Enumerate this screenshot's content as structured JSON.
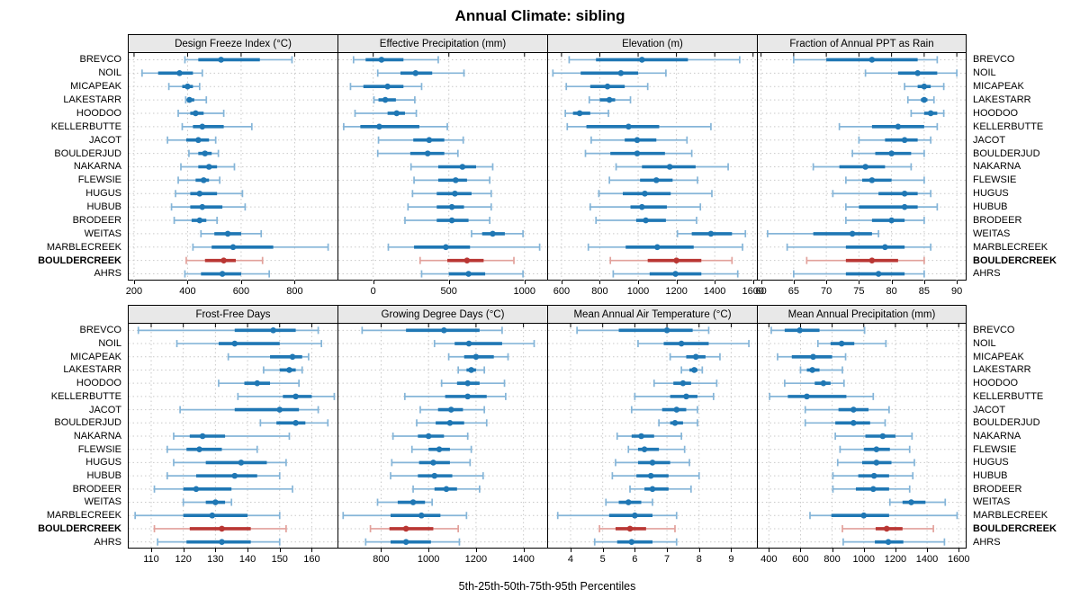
{
  "title": "Annual Climate: sibling",
  "caption": "5th-25th-50th-75th-95th Percentiles",
  "percentile_labels": [
    "5th",
    "25th",
    "50th",
    "75th",
    "95th"
  ],
  "sites": [
    "BREVCO",
    "NOIL",
    "MICAPEAK",
    "LAKESTARR",
    "HOODOO",
    "KELLERBUTTE",
    "JACOT",
    "BOULDERJUD",
    "NAKARNA",
    "FLEWSIE",
    "HUGUS",
    "HUBUB",
    "BRODEER",
    "WEITAS",
    "MARBLECREEK",
    "BOULDERCREEK",
    "AHRS"
  ],
  "highlight_site": "BOULDERCREEK",
  "colors": {
    "series": "#1f77b4",
    "series_light": "#85b5d8",
    "highlight": "#b93633",
    "highlight_light": "#e2a19b",
    "strip_bg": "#e8e8e8",
    "grid": "#c9c9c9",
    "border": "#000000"
  },
  "layout": {
    "rows": 2,
    "cols": 4,
    "grid": "dotted",
    "legend": "none"
  },
  "chart_data": [
    {
      "type": "dotplot",
      "title": "Design Freeze Index (°C)",
      "xlim": [
        180,
        960
      ],
      "ticks": [
        200,
        400,
        600,
        800
      ],
      "percentiles": [
        [
          390,
          440,
          525,
          670,
          790
        ],
        [
          230,
          290,
          370,
          420,
          455
        ],
        [
          330,
          380,
          400,
          420,
          445
        ],
        [
          393,
          400,
          407,
          425,
          470
        ],
        [
          365,
          410,
          430,
          460,
          535
        ],
        [
          380,
          420,
          455,
          535,
          640
        ],
        [
          325,
          395,
          440,
          480,
          505
        ],
        [
          405,
          440,
          465,
          490,
          515
        ],
        [
          375,
          440,
          480,
          510,
          575
        ],
        [
          365,
          430,
          460,
          480,
          520
        ],
        [
          355,
          410,
          445,
          510,
          605
        ],
        [
          340,
          410,
          455,
          530,
          615
        ],
        [
          350,
          415,
          445,
          470,
          510
        ],
        [
          450,
          500,
          550,
          600,
          675
        ],
        [
          420,
          490,
          570,
          720,
          925
        ],
        [
          395,
          465,
          535,
          580,
          680
        ],
        [
          390,
          450,
          530,
          600,
          705
        ]
      ]
    },
    {
      "type": "dotplot",
      "title": "Effective Precipitation (mm)",
      "xlim": [
        -230,
        1150
      ],
      "ticks": [
        0,
        500,
        1000
      ],
      "percentiles": [
        [
          -130,
          -50,
          55,
          200,
          430
        ],
        [
          30,
          180,
          280,
          390,
          600
        ],
        [
          -150,
          -65,
          95,
          200,
          320
        ],
        [
          5,
          35,
          80,
          150,
          275
        ],
        [
          -120,
          95,
          155,
          210,
          285
        ],
        [
          -195,
          -85,
          40,
          305,
          490
        ],
        [
          35,
          265,
          370,
          470,
          595
        ],
        [
          30,
          245,
          360,
          470,
          560
        ],
        [
          250,
          430,
          590,
          680,
          790
        ],
        [
          270,
          430,
          545,
          620,
          770
        ],
        [
          260,
          420,
          540,
          650,
          780
        ],
        [
          230,
          420,
          520,
          600,
          780
        ],
        [
          210,
          420,
          520,
          630,
          770
        ],
        [
          650,
          720,
          790,
          870,
          990
        ],
        [
          100,
          270,
          480,
          640,
          1100
        ],
        [
          310,
          490,
          620,
          730,
          930
        ],
        [
          320,
          500,
          630,
          740,
          990
        ]
      ]
    },
    {
      "type": "dotplot",
      "title": "Elevation (m)",
      "xlim": [
        530,
        1620
      ],
      "ticks": [
        600,
        800,
        1000,
        1200,
        1400,
        1600
      ],
      "percentiles": [
        [
          640,
          780,
          1020,
          1260,
          1530
        ],
        [
          555,
          700,
          910,
          1000,
          1145
        ],
        [
          625,
          750,
          840,
          930,
          1050
        ],
        [
          745,
          800,
          850,
          880,
          960
        ],
        [
          620,
          660,
          695,
          750,
          845
        ],
        [
          630,
          730,
          950,
          1110,
          1380
        ],
        [
          755,
          930,
          995,
          1095,
          1255
        ],
        [
          725,
          855,
          995,
          1140,
          1280
        ],
        [
          885,
          1020,
          1165,
          1300,
          1470
        ],
        [
          850,
          1010,
          1095,
          1180,
          1310
        ],
        [
          795,
          920,
          1035,
          1170,
          1385
        ],
        [
          750,
          960,
          1020,
          1150,
          1325
        ],
        [
          780,
          990,
          1040,
          1145,
          1305
        ],
        [
          1205,
          1280,
          1380,
          1490,
          1560
        ],
        [
          740,
          935,
          1100,
          1290,
          1545
        ],
        [
          855,
          1050,
          1200,
          1330,
          1490
        ],
        [
          870,
          1060,
          1195,
          1330,
          1520
        ]
      ]
    },
    {
      "type": "dotplot",
      "title": "Fraction of Annual PPT as Rain",
      "xlim": [
        59.5,
        91.5
      ],
      "ticks": [
        60,
        65,
        70,
        75,
        80,
        85,
        90
      ],
      "percentiles": [
        [
          65,
          70,
          77,
          84,
          87
        ],
        [
          76,
          81,
          84,
          87,
          90
        ],
        [
          82,
          84,
          85,
          86,
          88
        ],
        [
          82.5,
          84.5,
          85,
          85.5,
          86.5
        ],
        [
          83,
          85,
          86,
          87,
          88
        ],
        [
          72,
          77,
          81,
          85,
          87
        ],
        [
          75,
          79,
          82,
          84,
          86
        ],
        [
          74,
          77.5,
          80,
          83,
          85
        ],
        [
          68,
          72,
          76,
          79,
          83
        ],
        [
          73,
          75.5,
          77,
          80,
          85
        ],
        [
          71,
          78,
          82,
          84,
          86
        ],
        [
          73,
          75,
          82,
          84,
          87
        ],
        [
          73,
          77,
          80,
          82,
          85
        ],
        [
          61,
          68,
          74,
          77,
          78
        ],
        [
          64,
          73,
          79,
          82,
          86
        ],
        [
          67,
          73,
          77,
          81,
          85
        ],
        [
          65,
          73,
          78,
          82,
          85
        ]
      ]
    },
    {
      "type": "dotplot",
      "title": "Frost-Free Days",
      "xlim": [
        103,
        168
      ],
      "ticks": [
        110,
        120,
        130,
        140,
        150,
        160
      ],
      "percentiles": [
        [
          106,
          136,
          148,
          155,
          162
        ],
        [
          118,
          131,
          136,
          150,
          163
        ],
        [
          134,
          147,
          154,
          157,
          159
        ],
        [
          145,
          150,
          153,
          155,
          157
        ],
        [
          131,
          139,
          143,
          147,
          156
        ],
        [
          137,
          151,
          155,
          160,
          167
        ],
        [
          119,
          136,
          150,
          156,
          162
        ],
        [
          144,
          149,
          155,
          158,
          165
        ],
        [
          117,
          122,
          126,
          133,
          153
        ],
        [
          115,
          121,
          125,
          132,
          143
        ],
        [
          117,
          127,
          138,
          146,
          152
        ],
        [
          115,
          124,
          136,
          143,
          150
        ],
        [
          111,
          120,
          124,
          135,
          154
        ],
        [
          120,
          127,
          130,
          133,
          135
        ],
        [
          105,
          120,
          129,
          140,
          150
        ],
        [
          111,
          122,
          132,
          141,
          152
        ],
        [
          112,
          121,
          132,
          141,
          150
        ]
      ]
    },
    {
      "type": "dotplot",
      "title": "Growing Degree Days (°C)",
      "xlim": [
        620,
        1500
      ],
      "ticks": [
        800,
        1000,
        1200,
        1400
      ],
      "percentiles": [
        [
          720,
          905,
          1065,
          1215,
          1310
        ],
        [
          1025,
          1110,
          1170,
          1310,
          1445
        ],
        [
          1085,
          1150,
          1200,
          1275,
          1335
        ],
        [
          1125,
          1160,
          1180,
          1200,
          1235
        ],
        [
          1055,
          1120,
          1165,
          1215,
          1320
        ],
        [
          900,
          1070,
          1165,
          1245,
          1325
        ],
        [
          965,
          1040,
          1095,
          1145,
          1235
        ],
        [
          950,
          1030,
          1090,
          1150,
          1245
        ],
        [
          850,
          955,
          1000,
          1065,
          1165
        ],
        [
          930,
          1000,
          1045,
          1090,
          1180
        ],
        [
          845,
          960,
          1020,
          1090,
          1175
        ],
        [
          840,
          955,
          1025,
          1100,
          1230
        ],
        [
          935,
          1025,
          1075,
          1120,
          1215
        ],
        [
          785,
          870,
          935,
          985,
          1015
        ],
        [
          640,
          840,
          970,
          1050,
          1160
        ],
        [
          755,
          835,
          905,
          1020,
          1125
        ],
        [
          735,
          840,
          905,
          1010,
          1130
        ]
      ]
    },
    {
      "type": "dotplot",
      "title": "Mean Annual Air Temperature (°C)",
      "xlim": [
        3.3,
        9.8
      ],
      "ticks": [
        4,
        5,
        6,
        7,
        8,
        9
      ],
      "percentiles": [
        [
          4.2,
          5.5,
          7.0,
          7.8,
          8.3
        ],
        [
          6.1,
          6.9,
          7.45,
          8.3,
          9.55
        ],
        [
          7.1,
          7.6,
          7.9,
          8.2,
          8.65
        ],
        [
          7.45,
          7.7,
          7.85,
          7.95,
          8.1
        ],
        [
          6.6,
          7.2,
          7.5,
          7.75,
          8.55
        ],
        [
          6.0,
          7.1,
          7.6,
          7.95,
          8.45
        ],
        [
          5.9,
          6.85,
          7.3,
          7.6,
          7.95
        ],
        [
          6.75,
          7.1,
          7.25,
          7.5,
          7.95
        ],
        [
          5.45,
          5.9,
          6.2,
          6.6,
          7.45
        ],
        [
          5.8,
          6.1,
          6.3,
          6.75,
          7.55
        ],
        [
          5.4,
          6.1,
          6.55,
          7.1,
          7.7
        ],
        [
          5.3,
          6.05,
          6.5,
          7.05,
          8.0
        ],
        [
          5.85,
          6.3,
          6.55,
          7.05,
          7.75
        ],
        [
          5.1,
          5.5,
          5.8,
          6.2,
          6.55
        ],
        [
          3.6,
          5.2,
          6.0,
          6.55,
          7.3
        ],
        [
          4.9,
          5.4,
          5.85,
          6.35,
          7.25
        ],
        [
          4.75,
          5.45,
          5.9,
          6.55,
          7.3
        ]
      ]
    },
    {
      "type": "dotplot",
      "title": "Mean Annual Precipitation (mm)",
      "xlim": [
        330,
        1650
      ],
      "ticks": [
        400,
        600,
        800,
        1000,
        1200,
        1400,
        1600
      ],
      "percentiles": [
        [
          415,
          500,
          595,
          720,
          1005
        ],
        [
          710,
          790,
          860,
          940,
          1140
        ],
        [
          455,
          545,
          680,
          800,
          885
        ],
        [
          600,
          640,
          675,
          720,
          865
        ],
        [
          500,
          690,
          745,
          790,
          875
        ],
        [
          405,
          520,
          640,
          890,
          1060
        ],
        [
          630,
          840,
          935,
          1030,
          1160
        ],
        [
          630,
          820,
          935,
          1040,
          1135
        ],
        [
          820,
          1010,
          1120,
          1200,
          1305
        ],
        [
          850,
          1000,
          1080,
          1165,
          1290
        ],
        [
          835,
          990,
          1080,
          1175,
          1320
        ],
        [
          805,
          965,
          1065,
          1160,
          1310
        ],
        [
          805,
          950,
          1060,
          1160,
          1290
        ],
        [
          1165,
          1245,
          1300,
          1390,
          1515
        ],
        [
          660,
          795,
          1000,
          1160,
          1590
        ],
        [
          865,
          1075,
          1145,
          1245,
          1440
        ],
        [
          870,
          1070,
          1155,
          1250,
          1510
        ]
      ]
    }
  ]
}
